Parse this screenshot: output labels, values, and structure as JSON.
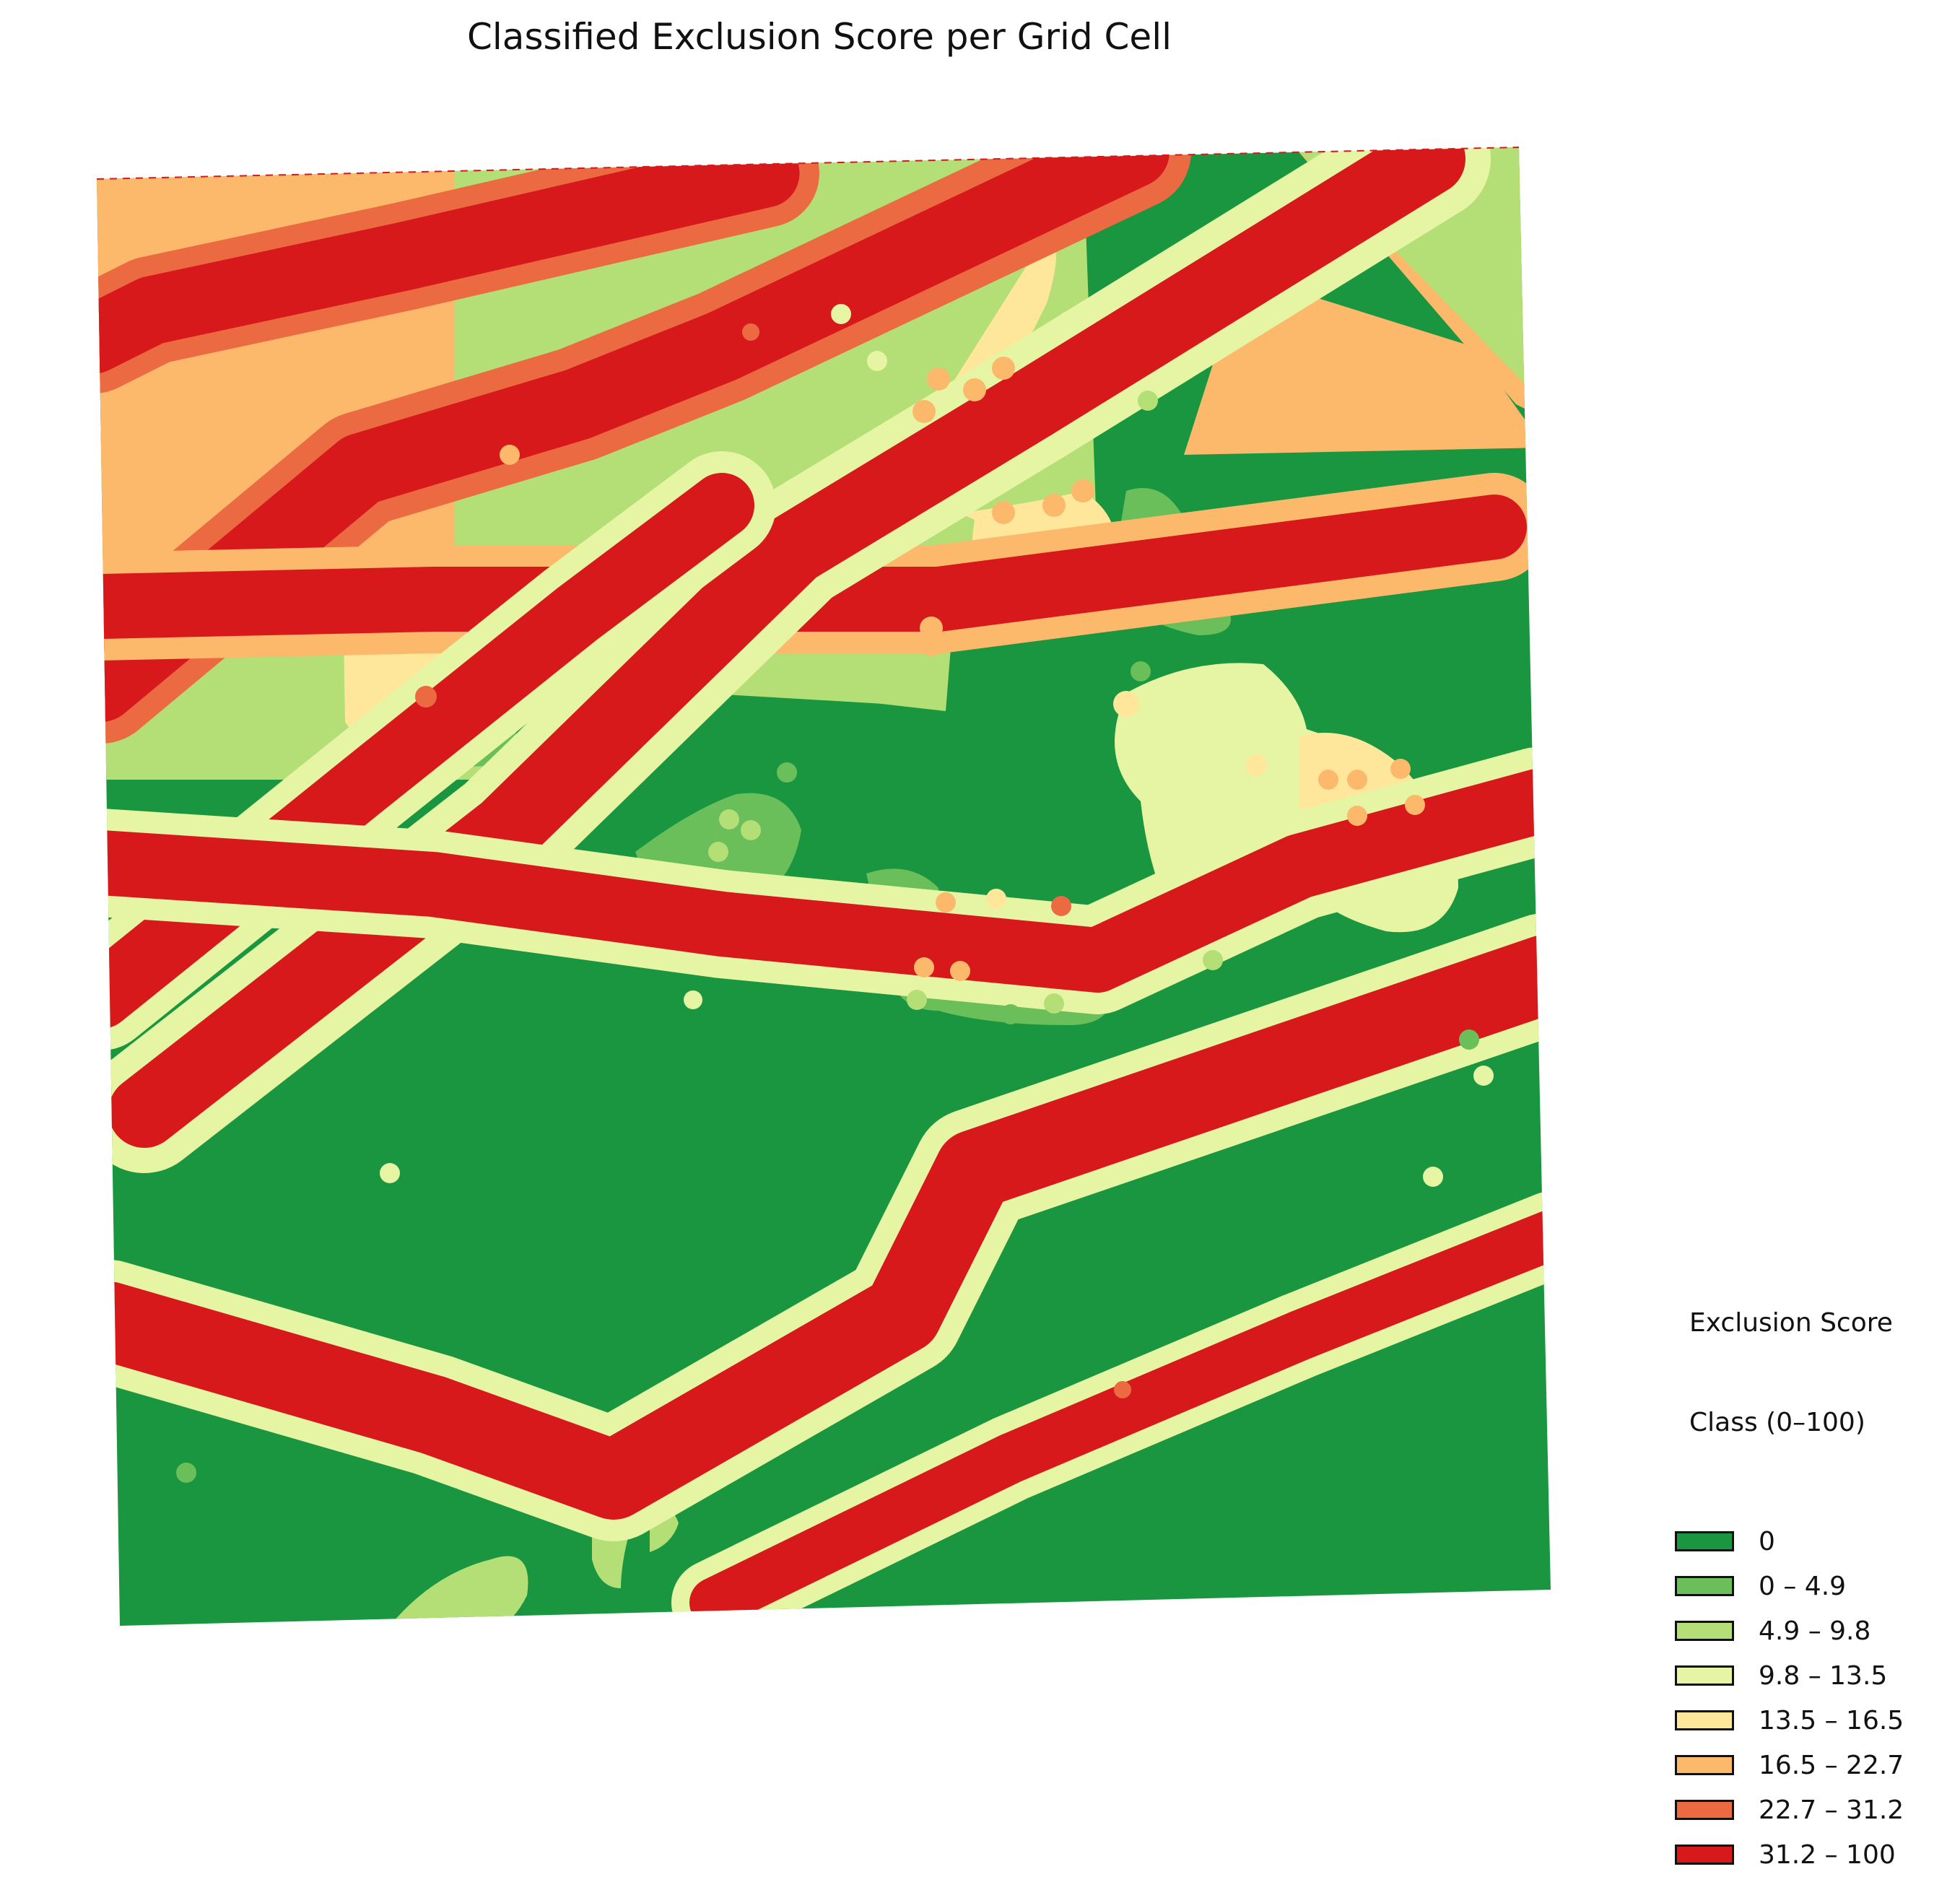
{
  "title": "Classified Exclusion Score per Grid Cell",
  "legend": {
    "title_line1": "Exclusion Score",
    "title_line2": "Class (0–100)",
    "classes": [
      {
        "label": "0",
        "color": "#1a9641"
      },
      {
        "label": "0 – 4.9",
        "color": "#6abf5a"
      },
      {
        "label": "4.9 – 9.8",
        "color": "#b3df76"
      },
      {
        "label": "9.8 – 13.5",
        "color": "#e6f5a3"
      },
      {
        "label": "13.5 – 16.5",
        "color": "#fee79b"
      },
      {
        "label": "16.5 – 22.7",
        "color": "#fdb96b"
      },
      {
        "label": "22.7 – 31.2",
        "color": "#ec6a41"
      },
      {
        "label": "31.2 – 100",
        "color": "#d7191c"
      }
    ]
  }
}
